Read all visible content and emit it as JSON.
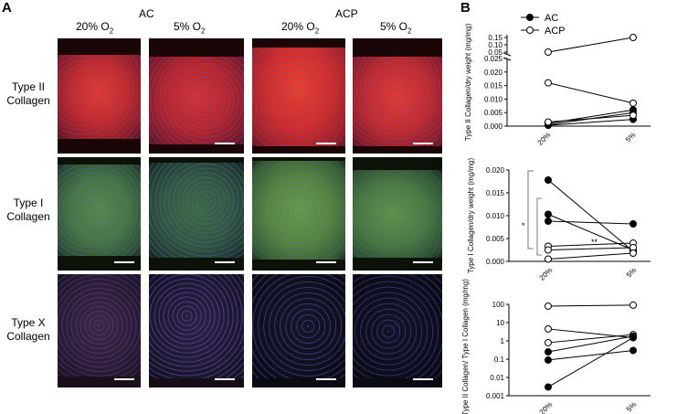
{
  "panel_a": {
    "letter": "A",
    "groups": [
      "AC",
      "ACP"
    ],
    "columns": [
      {
        "label": "20% O",
        "sub": "2"
      },
      {
        "label": "5% O",
        "sub": "2"
      },
      {
        "label": "20% O",
        "sub": "2"
      },
      {
        "label": "5% O",
        "sub": "2"
      }
    ],
    "rows": [
      {
        "line1": "Type II",
        "line2": "Collagen"
      },
      {
        "line1": "Type I",
        "line2": "Collagen"
      },
      {
        "line1": "Type X",
        "line2": "Collagen"
      }
    ],
    "stain_colors": {
      "type_ii": "#d8282a",
      "type_i": "#5f9a45",
      "type_x": "#3a2244",
      "nuclei": "#3a58c8"
    }
  },
  "panel_b": {
    "letter": "B",
    "legend": [
      {
        "label": "AC",
        "marker": "filled"
      },
      {
        "label": "ACP",
        "marker": "open"
      }
    ],
    "significance": [
      "*",
      "**"
    ]
  },
  "chart_data": [
    {
      "type": "line",
      "title": "",
      "ylabel": "Type II Collagen/dry weight (mg/mg)",
      "x": [
        "20%",
        "5%"
      ],
      "y_break": {
        "lower": [
          0,
          0.025
        ],
        "upper_ticks": [
          0.05,
          0.1,
          0.15
        ]
      },
      "yticks": [
        "0.000",
        "0.005",
        "0.010",
        "0.015",
        "0.020",
        "0.025",
        "0.05",
        "0.10",
        "0.15"
      ],
      "series": [
        {
          "group": "AC",
          "values": [
            0.001,
            0.006
          ]
        },
        {
          "group": "AC",
          "values": [
            0.0005,
            0.005
          ]
        },
        {
          "group": "AC",
          "values": [
            0.0003,
            0.0025
          ]
        },
        {
          "group": "ACP",
          "values": [
            0.05,
            0.15
          ]
        },
        {
          "group": "ACP",
          "values": [
            0.016,
            0.0085
          ]
        },
        {
          "group": "ACP",
          "values": [
            0.0015,
            0.004
          ]
        }
      ]
    },
    {
      "type": "line",
      "title": "",
      "ylabel": "Type I Collagen/dry weight (mg/mg)",
      "x": [
        "20%",
        "5%"
      ],
      "ylim": [
        0,
        0.02
      ],
      "yticks": [
        "0.000",
        "0.005",
        "0.010",
        "0.015",
        "0.020"
      ],
      "series": [
        {
          "group": "AC",
          "values": [
            0.0178,
            0.0022
          ]
        },
        {
          "group": "AC",
          "values": [
            0.0103,
            0.0025
          ]
        },
        {
          "group": "AC",
          "values": [
            0.0088,
            0.0082
          ]
        },
        {
          "group": "ACP",
          "values": [
            0.0033,
            0.004
          ]
        },
        {
          "group": "ACP",
          "values": [
            0.0025,
            0.003
          ]
        },
        {
          "group": "ACP",
          "values": [
            0.0005,
            0.0018
          ]
        }
      ]
    },
    {
      "type": "line",
      "title": "",
      "ylabel": "Type II Collagen/ Type I Collagen (mg/mg)",
      "x": [
        "20%",
        "5%"
      ],
      "scale": "log",
      "ylim": [
        0.001,
        100
      ],
      "yticks": [
        "100",
        "10",
        "1",
        "0.1",
        "0.01",
        "0.001"
      ],
      "series": [
        {
          "group": "ACP",
          "values": [
            80,
            90
          ]
        },
        {
          "group": "ACP",
          "values": [
            4.5,
            1.5
          ]
        },
        {
          "group": "ACP",
          "values": [
            0.8,
            2.2
          ]
        },
        {
          "group": "AC",
          "values": [
            0.25,
            1.8
          ]
        },
        {
          "group": "AC",
          "values": [
            0.09,
            0.3
          ]
        },
        {
          "group": "AC",
          "values": [
            0.003,
            1.5
          ]
        }
      ]
    }
  ]
}
